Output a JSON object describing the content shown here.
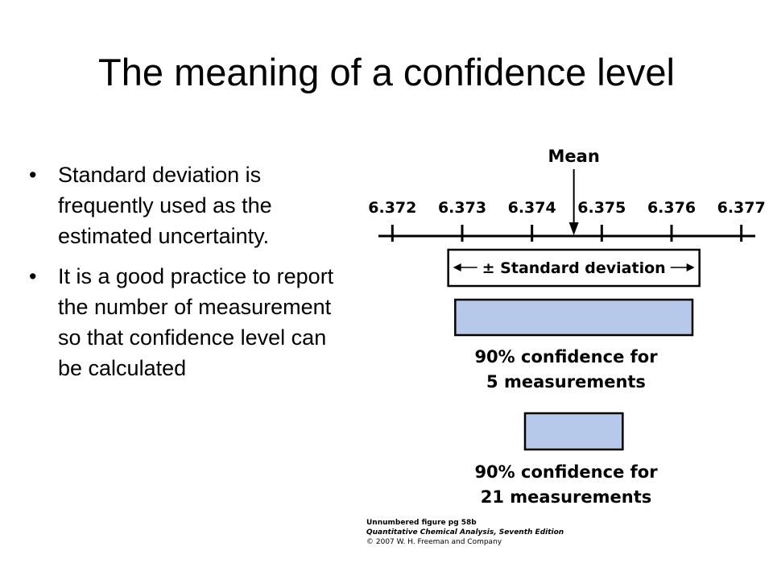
{
  "title": "The meaning of a confidence level",
  "bullets": [
    "Standard deviation is frequently used as the estimated uncertainty.",
    "It is a good practice to report the number of measurement so that confidence level can be calculated"
  ],
  "figure": {
    "xlim": [
      6.3718,
      6.3772
    ],
    "xticks": [
      6.372,
      6.373,
      6.374,
      6.375,
      6.376,
      6.377
    ],
    "mean": {
      "label": "Mean",
      "value": 6.3746
    },
    "std_dev": {
      "label": "± Standard deviation",
      "range": [
        6.3728,
        6.3764
      ]
    },
    "intervals": [
      {
        "lines": [
          "90% confidence for",
          "5 measurements"
        ],
        "range": [
          6.3729,
          6.3763
        ]
      },
      {
        "lines": [
          "90% confidence for",
          "21 measurements"
        ],
        "range": [
          6.3739,
          6.3753
        ]
      }
    ],
    "caption": [
      "Unnumbered figure pg 58b",
      "Quantitative Chemical Analysis, Seventh Edition",
      "© 2007 W. H. Freeman and Company"
    ]
  }
}
